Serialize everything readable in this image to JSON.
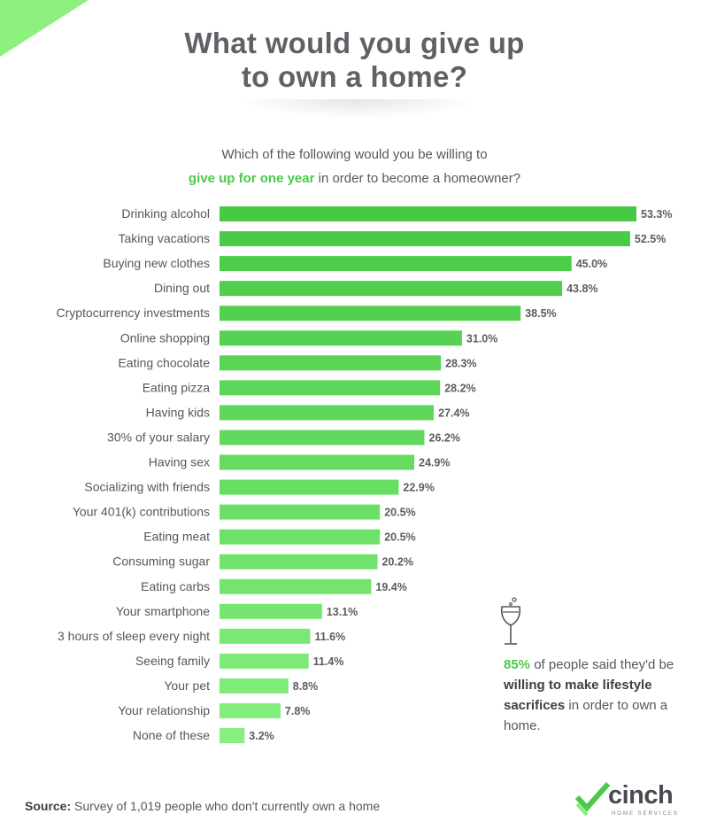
{
  "title": {
    "line1": "What would you give up",
    "line2": "to own a home?"
  },
  "subtitle": {
    "line1": "Which of the following would you be willing to",
    "line2_highlight": "give up for one year",
    "line2_rest": " in order to become a homeowner?"
  },
  "callout": {
    "percent": "85%",
    "text1": " of people said they'd be ",
    "bold": "willing to make lifestyle sacrifices",
    "text2": " in order to own a home."
  },
  "source": {
    "label": "Source:",
    "text": " Survey of 1,019 people who don't currently own a home"
  },
  "logo": {
    "name": "cinch",
    "tagline": "HOME SERVICES"
  },
  "colors": {
    "accent": "#4cc94a",
    "bar_dark": "#47c944",
    "bar_light": "#86ef7f",
    "text": "#55575d"
  },
  "icons": [
    "wine-glass-icon",
    "cinch-check-logo-icon"
  ],
  "chart_data": {
    "type": "bar",
    "orientation": "horizontal",
    "categories": [
      "Drinking alcohol",
      "Taking vacations",
      "Buying new clothes",
      "Dining out",
      "Cryptocurrency investments",
      "Online shopping",
      "Eating chocolate",
      "Eating pizza",
      "Having kids",
      "30% of your salary",
      "Having sex",
      "Socializing with friends",
      "Your 401(k) contributions",
      "Eating meat",
      "Consuming sugar",
      "Eating carbs",
      "Your smartphone",
      "3 hours of sleep every night",
      "Seeing family",
      "Your pet",
      "Your relationship",
      "None of these"
    ],
    "values": [
      53.3,
      52.5,
      45.0,
      43.8,
      38.5,
      31.0,
      28.3,
      28.2,
      27.4,
      26.2,
      24.9,
      22.9,
      20.5,
      20.5,
      20.2,
      19.4,
      13.1,
      11.6,
      11.4,
      8.8,
      7.8,
      3.2
    ],
    "value_labels": [
      "53.3%",
      "52.5%",
      "45.0%",
      "43.8%",
      "38.5%",
      "31.0%",
      "28.3%",
      "28.2%",
      "27.4%",
      "26.2%",
      "24.9%",
      "22.9%",
      "20.5%",
      "20.5%",
      "20.2%",
      "19.4%",
      "13.1%",
      "11.6%",
      "11.4%",
      "8.8%",
      "7.8%",
      "3.2%"
    ],
    "xlim": [
      0,
      53.3
    ],
    "grid": false,
    "legend": "none"
  }
}
